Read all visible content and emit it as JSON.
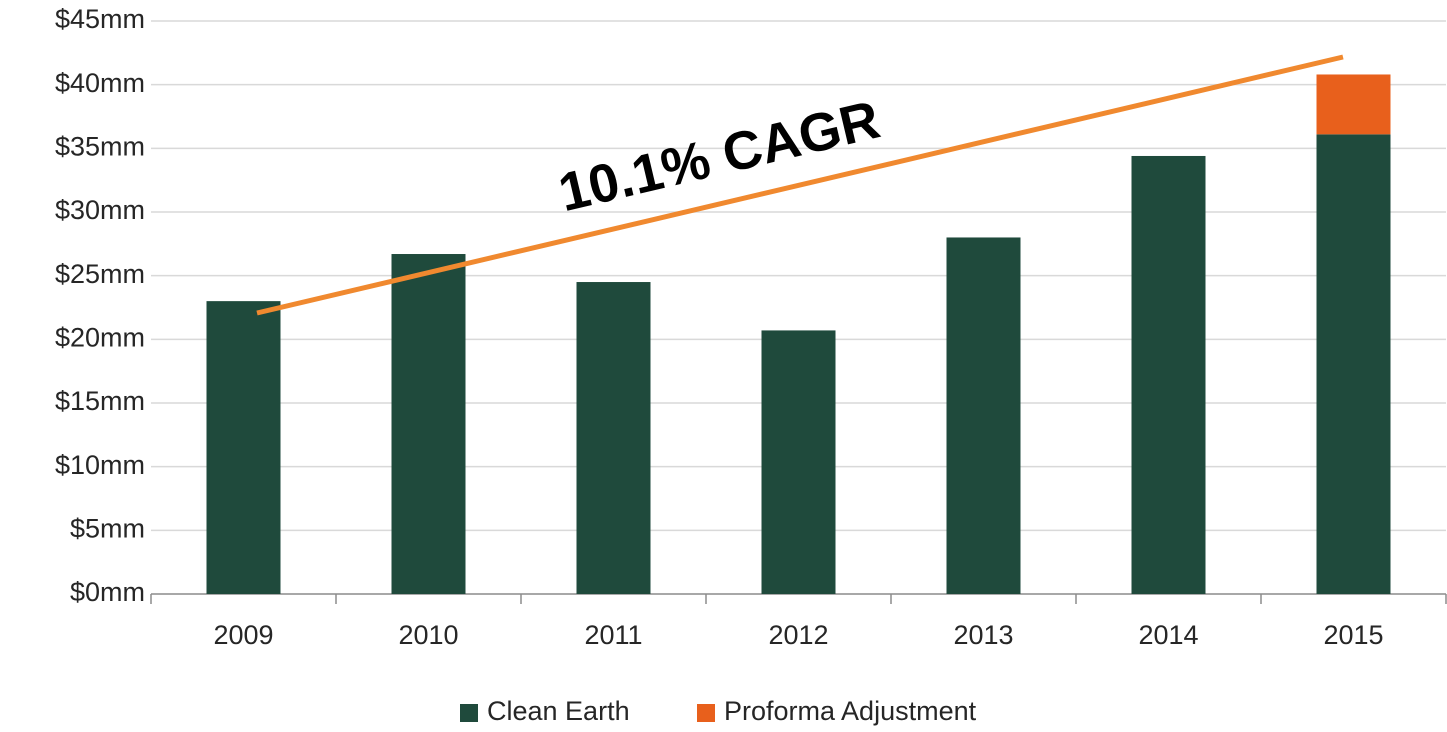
{
  "chart_data": {
    "type": "bar",
    "stacked": true,
    "categories": [
      "2009",
      "2010",
      "2011",
      "2012",
      "2013",
      "2014",
      "2015"
    ],
    "series": [
      {
        "name": "Clean Earth",
        "color": "#1f4a3c",
        "values": [
          23.0,
          26.7,
          24.5,
          20.7,
          28.0,
          34.4,
          36.1
        ]
      },
      {
        "name": "Proforma Adjustment",
        "color": "#e8601c",
        "values": [
          0,
          0,
          0,
          0,
          0,
          0,
          4.7
        ]
      }
    ],
    "ylim": [
      0,
      45
    ],
    "yticks": [
      {
        "value": 0,
        "label": "$0mm"
      },
      {
        "value": 5,
        "label": "$5mm"
      },
      {
        "value": 10,
        "label": "$10mm"
      },
      {
        "value": 15,
        "label": "$15mm"
      },
      {
        "value": 20,
        "label": "$20mm"
      },
      {
        "value": 25,
        "label": "$25mm"
      },
      {
        "value": 30,
        "label": "$30mm"
      },
      {
        "value": 35,
        "label": "$35mm"
      },
      {
        "value": 40,
        "label": "$40mm"
      },
      {
        "value": 45,
        "label": "$45mm"
      }
    ],
    "grid": true,
    "legend": "bottom",
    "annotation": "10.1% CAGR"
  }
}
